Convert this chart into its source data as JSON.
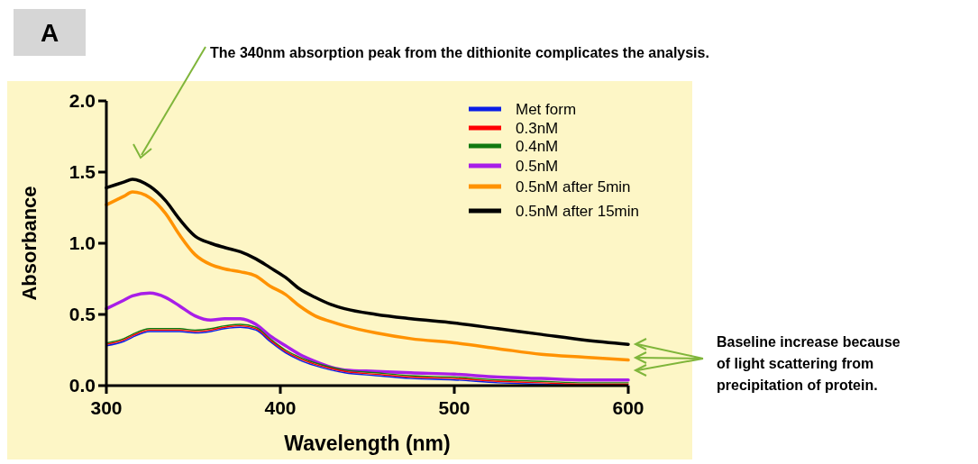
{
  "chart_data": {
    "type": "line",
    "title": "A",
    "xlabel": "Wavelength (nm)",
    "ylabel": "Absorbance",
    "x": [
      300,
      310,
      315,
      325,
      334,
      342,
      351,
      360,
      368,
      377,
      386,
      394,
      403,
      411,
      420,
      429,
      437,
      455,
      475,
      500,
      525,
      550,
      575,
      600
    ],
    "series": [
      {
        "name": "Met form",
        "color": "#0a1ee6",
        "values": [
          0.28,
          0.31,
          0.34,
          0.38,
          0.38,
          0.38,
          0.37,
          0.38,
          0.4,
          0.41,
          0.39,
          0.31,
          0.23,
          0.18,
          0.14,
          0.11,
          0.09,
          0.07,
          0.05,
          0.04,
          0.02,
          0.01,
          0.0,
          0.0
        ]
      },
      {
        "name": "0.3nM",
        "color": "#ff0000",
        "values": [
          0.29,
          0.32,
          0.35,
          0.39,
          0.39,
          0.39,
          0.38,
          0.39,
          0.41,
          0.42,
          0.4,
          0.32,
          0.24,
          0.19,
          0.15,
          0.12,
          0.1,
          0.08,
          0.06,
          0.05,
          0.03,
          0.02,
          0.01,
          0.01
        ]
      },
      {
        "name": "0.4nM",
        "color": "#107a10",
        "values": [
          0.3,
          0.33,
          0.36,
          0.4,
          0.4,
          0.4,
          0.39,
          0.4,
          0.42,
          0.43,
          0.41,
          0.33,
          0.25,
          0.2,
          0.16,
          0.13,
          0.11,
          0.09,
          0.07,
          0.06,
          0.04,
          0.03,
          0.02,
          0.02
        ]
      },
      {
        "name": "0.5nM",
        "color": "#a81ee8",
        "values": [
          0.54,
          0.6,
          0.63,
          0.65,
          0.62,
          0.56,
          0.49,
          0.46,
          0.47,
          0.47,
          0.43,
          0.35,
          0.28,
          0.22,
          0.17,
          0.13,
          0.11,
          0.1,
          0.09,
          0.08,
          0.06,
          0.05,
          0.04,
          0.04
        ]
      },
      {
        "name": "0.5nM after 5min",
        "color": "#ff9200",
        "values": [
          1.27,
          1.33,
          1.36,
          1.32,
          1.21,
          1.06,
          0.92,
          0.85,
          0.82,
          0.8,
          0.77,
          0.7,
          0.64,
          0.56,
          0.49,
          0.45,
          0.42,
          0.37,
          0.33,
          0.3,
          0.26,
          0.22,
          0.2,
          0.18
        ]
      },
      {
        "name": "0.5nM after 15min",
        "color": "#000000",
        "values": [
          1.39,
          1.43,
          1.45,
          1.4,
          1.3,
          1.17,
          1.05,
          1.0,
          0.97,
          0.94,
          0.89,
          0.83,
          0.76,
          0.68,
          0.62,
          0.57,
          0.54,
          0.5,
          0.47,
          0.44,
          0.4,
          0.36,
          0.32,
          0.29
        ]
      }
    ],
    "xlim": [
      300,
      600
    ],
    "xticks": [
      300,
      400,
      500,
      600
    ],
    "ylim": [
      0,
      2
    ],
    "yticks": [
      {
        "value": 0,
        "label": "0.0"
      },
      {
        "value": 0.5,
        "label": "0.5"
      },
      {
        "value": 1,
        "label": "1.0"
      },
      {
        "value": 1.5,
        "label": "1.5"
      },
      {
        "value": 2,
        "label": "2.0"
      }
    ],
    "legend": "top right",
    "grid": false,
    "annotations": [
      "The 340nm absorption peak from the dithionite complicates the analysis.",
      "Baseline increase because of light scattering from precipitation of protein."
    ]
  }
}
